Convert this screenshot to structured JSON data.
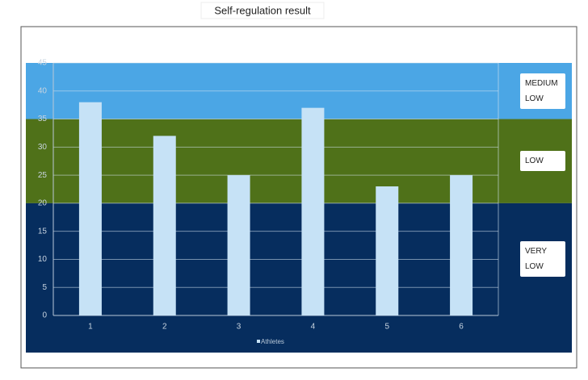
{
  "chart_data": {
    "type": "bar",
    "title": "Self-regulation result",
    "categories": [
      "1",
      "2",
      "3",
      "4",
      "5",
      "6"
    ],
    "series": [
      {
        "name": "Athletes",
        "color": "#c6e2f6",
        "values": [
          38,
          32,
          25,
          37,
          23,
          25
        ]
      }
    ],
    "ylim": [
      0,
      45
    ],
    "yticks": [
      0,
      5,
      10,
      15,
      20,
      25,
      30,
      35,
      40,
      45
    ],
    "grid": true,
    "bands": [
      {
        "label": "MEDIUM LOW",
        "from": 35,
        "to": 45,
        "color": "#4ba6e5"
      },
      {
        "label": "LOW",
        "from": 20,
        "to": 35,
        "color": "#4f7119"
      },
      {
        "label": "VERY LOW",
        "from": 0,
        "to": 20,
        "color": "#062d5e"
      }
    ]
  }
}
